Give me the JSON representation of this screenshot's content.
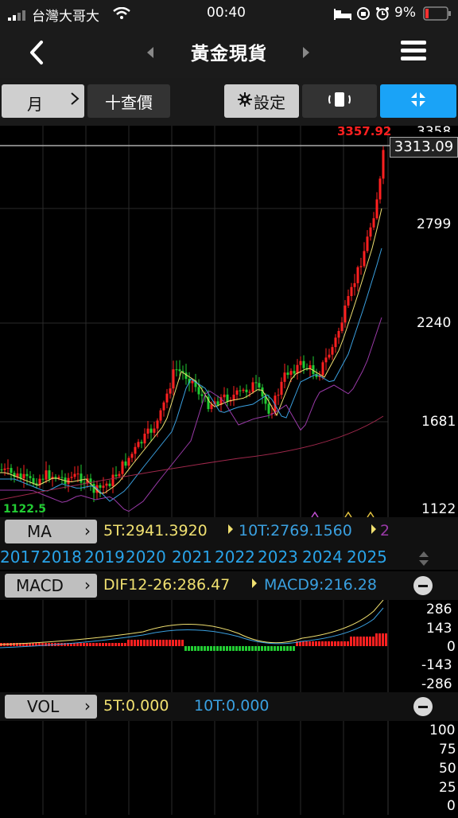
{
  "status": {
    "carrier": "台灣大哥大",
    "time": "00:40",
    "battery": "9%"
  },
  "nav": {
    "title": "黃金現貨"
  },
  "toolbar": {
    "period": "月",
    "price_query": "十查價",
    "settings": "設定"
  },
  "price_chart": {
    "high_label": "3357.92",
    "low_label": "1122.5",
    "last_price": "3313.09",
    "axis_top_partial": "3358",
    "y_ticks": [
      "2799",
      "2240",
      "1681",
      "1122"
    ]
  },
  "ma_bar": {
    "label": "MA",
    "ma5": "5T:2941.3920",
    "ma10": "10T:2769.1560",
    "more": "2"
  },
  "years": [
    "2017",
    "2018",
    "2019",
    "2020",
    "2021",
    "2022",
    "2023",
    "2024",
    "2025"
  ],
  "macd_bar": {
    "label": "MACD",
    "dif": "DIF12-26:286.47",
    "macd9": "MACD9:216.28"
  },
  "macd_axis": [
    "286",
    "143",
    "0",
    "-143",
    "-286"
  ],
  "vol_bar": {
    "label": "VOL",
    "vol5": "5T:0.000",
    "vol10": "10T:0.000"
  },
  "vol_axis": [
    "100",
    "75",
    "50",
    "25",
    "0"
  ],
  "colors": {
    "up": "#ff2020",
    "down": "#22cc33",
    "ma5": "#f0e070",
    "ma10": "#3aa0e0",
    "ma20": "#9a3aa8",
    "ma60": "#a0284c",
    "accent": "#1aa3f7"
  }
}
